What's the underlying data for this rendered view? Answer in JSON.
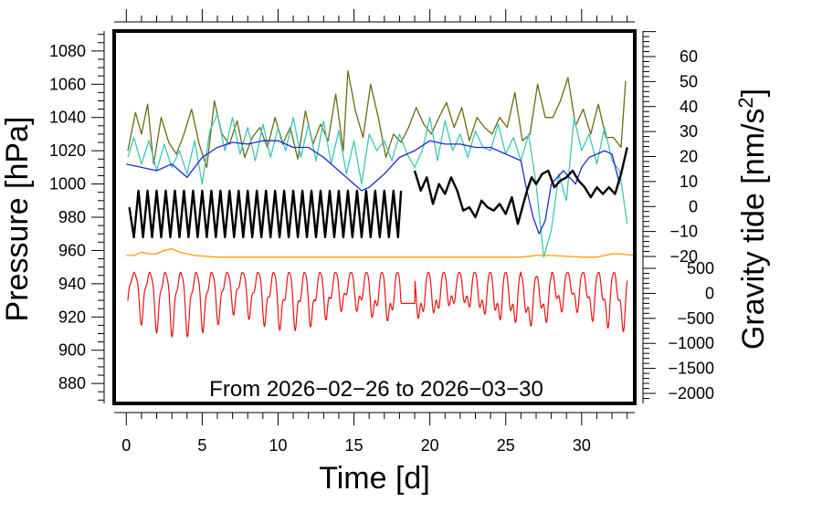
{
  "chart_data": {
    "type": "line",
    "annotation": "From 2026−02−26 to 2026−03−30",
    "x_axis": {
      "label": "Time [d]",
      "range": [
        -0.8,
        33.5
      ],
      "ticks": [
        0,
        5,
        10,
        15,
        20,
        25,
        30
      ],
      "tick_labels": [
        "0",
        "5",
        "10",
        "15",
        "20",
        "25",
        "30"
      ]
    },
    "y_axis_left": {
      "label": "Pressure [hPa]",
      "range": [
        868,
        1092
      ],
      "ticks": [
        880,
        900,
        920,
        940,
        960,
        980,
        1000,
        1020,
        1040,
        1060,
        1080
      ],
      "tick_labels": [
        "880",
        "900",
        "920",
        "940",
        "960",
        "980",
        "1000",
        "1020",
        "1040",
        "1060",
        "1080"
      ]
    },
    "y_axis_right_upper": {
      "label": "Gravity tide [nm/s",
      "label_sup": "2",
      "label_end": "]",
      "ticks": [
        -20,
        -10,
        0,
        10,
        20,
        30,
        40,
        50,
        60
      ],
      "tick_labels": [
        "−20",
        "−10",
        "0",
        "10",
        "20",
        "30",
        "40",
        "50",
        "60"
      ]
    },
    "y_axis_right_lower": {
      "ticks": [
        -2000,
        -1500,
        -1000,
        -500,
        0,
        500
      ],
      "tick_labels": [
        "−2000",
        "−1500",
        "−1000",
        "−500",
        "0",
        "500"
      ]
    },
    "grid": false,
    "series": [
      {
        "color": "#6b6b10",
        "x": [
          0.1,
          0.6,
          1.0,
          1.4,
          1.8,
          2.3,
          2.8,
          3.3,
          3.8,
          4.3,
          4.8,
          5.3,
          5.8,
          6.3,
          6.8,
          7.3,
          7.8,
          8.3,
          8.8,
          9.3,
          9.8,
          10.3,
          10.8,
          11.3,
          11.8,
          12.3,
          12.8,
          13.3,
          13.8,
          14.3,
          14.6,
          15.1,
          15.6,
          16.1,
          16.6,
          17.1,
          17.6,
          18.1,
          18.6,
          19.1,
          19.6,
          20.1,
          20.6,
          21.1,
          21.6,
          22.1,
          22.6,
          23.1,
          23.6,
          24.1,
          24.6,
          25.1,
          25.6,
          26.1,
          26.6,
          27.1,
          27.6,
          28.1,
          28.6,
          29.1,
          29.6,
          30.1,
          30.6,
          31.1,
          31.6,
          32.1,
          32.6,
          32.9
        ],
        "y": [
          1020,
          1043,
          1030,
          1048,
          1012,
          1040,
          1025,
          1018,
          1030,
          1045,
          1024,
          1010,
          1050,
          1030,
          1024,
          1038,
          1016,
          1028,
          1034,
          1022,
          1040,
          1024,
          1034,
          1015,
          1044,
          1024,
          1036,
          1026,
          1054,
          1020,
          1068,
          1044,
          1028,
          1060,
          1040,
          1016,
          1030,
          1025,
          1034,
          1046,
          1036,
          1030,
          1040,
          1049,
          1034,
          1046,
          1026,
          1040,
          1034,
          1030,
          1040,
          1034,
          1055,
          1026,
          1030,
          1060,
          1040,
          1040,
          1050,
          1064,
          1035,
          1045,
          1030,
          1048,
          1028,
          1028,
          1022,
          1062
        ]
      },
      {
        "color": "#3cc8b4",
        "x": [
          0.1,
          0.5,
          1.0,
          1.5,
          2.0,
          2.5,
          3.0,
          3.5,
          4.0,
          4.5,
          5.0,
          5.5,
          6.0,
          6.5,
          7.0,
          7.5,
          8.0,
          8.5,
          9.0,
          9.5,
          10.0,
          10.5,
          11.0,
          11.5,
          12.0,
          12.5,
          13.0,
          13.5,
          14.0,
          14.5,
          15.0,
          15.5,
          16.0,
          16.5,
          17.0,
          17.5,
          18.0,
          18.5,
          19.0,
          19.5,
          20.0,
          20.5,
          21.0,
          21.5,
          22.0,
          22.5,
          23.0,
          23.5,
          24.0,
          24.5,
          25.0,
          25.5,
          26.0,
          26.5,
          27.0,
          27.5,
          28.0,
          28.5,
          29.0,
          29.5,
          30.0,
          30.5,
          31.0,
          31.5,
          32.0,
          32.5,
          33.0
        ],
        "y": [
          1016,
          1028,
          1012,
          1026,
          1008,
          1024,
          1010,
          1020,
          1006,
          1026,
          1000,
          1032,
          1042,
          1020,
          1040,
          1018,
          1034,
          1014,
          1036,
          1016,
          1034,
          1020,
          1040,
          1016,
          1036,
          1014,
          1038,
          1012,
          1032,
          1006,
          1026,
          1000,
          1030,
          1020,
          1026,
          1014,
          1030,
          1018,
          1010,
          1020,
          1040,
          1014,
          1038,
          1020,
          1030,
          1016,
          1032,
          1022,
          1020,
          1036,
          1018,
          1028,
          1014,
          1030,
          1000,
          956,
          972,
          1006,
          990,
          1040,
          1020,
          1030,
          1012,
          1034,
          1014,
          1008,
          976
        ]
      },
      {
        "color": "#1e28d2",
        "x": [
          0,
          1,
          2,
          3,
          4,
          5,
          6,
          7,
          8,
          9,
          10,
          11,
          12,
          13,
          14,
          15,
          15.5,
          16,
          17,
          18,
          19,
          20,
          21,
          22,
          23,
          24,
          25,
          25.5,
          26,
          26.3,
          26.8,
          27.2,
          27.6,
          28.0,
          28.4,
          28.8,
          29.2,
          29.6,
          30.0,
          30.5,
          31,
          31.5,
          32,
          32.5
        ],
        "y": [
          1012,
          1010,
          1008,
          1012,
          1004,
          1016,
          1022,
          1025,
          1024,
          1026,
          1026,
          1022,
          1022,
          1016,
          1008,
          1000,
          996,
          998,
          1006,
          1016,
          1020,
          1026,
          1024,
          1024,
          1022,
          1022,
          1018,
          1016,
          1014,
          1000,
          980,
          970,
          978,
          1000,
          1004,
          1008,
          1004,
          1000,
          1010,
          1016,
          1018,
          1020,
          1018,
          1000
        ]
      },
      {
        "color": "#000000",
        "x": [
          0.2,
          0.5,
          0.8,
          1.1,
          1.4,
          1.7,
          2.0,
          2.3,
          2.6,
          2.9,
          3.2,
          3.5,
          3.8,
          4.1,
          4.4,
          4.7,
          5.0,
          5.3,
          5.6,
          5.9,
          6.2,
          6.5,
          6.8,
          7.1,
          7.4,
          7.7,
          8.0,
          8.3,
          8.6,
          8.9,
          9.2,
          9.5,
          9.8,
          10.1,
          10.4,
          10.7,
          11.0,
          11.3,
          11.6,
          11.9,
          12.2,
          12.5,
          12.8,
          13.1,
          13.4,
          13.7,
          14.0,
          14.3,
          14.6,
          14.9,
          15.2,
          15.5,
          15.8,
          16.1,
          16.4,
          16.7,
          17.0,
          17.3,
          17.6,
          17.9,
          18.1
        ],
        "y": [
          986,
          968,
          996,
          968,
          996,
          968,
          996,
          968,
          996,
          968,
          996,
          968,
          996,
          968,
          996,
          968,
          996,
          968,
          996,
          968,
          996,
          968,
          996,
          968,
          996,
          968,
          996,
          968,
          996,
          968,
          996,
          968,
          996,
          968,
          996,
          968,
          996,
          968,
          996,
          968,
          996,
          968,
          996,
          968,
          996,
          968,
          996,
          968,
          996,
          968,
          996,
          968,
          996,
          968,
          996,
          968,
          996,
          968,
          996,
          968,
          996
        ]
      },
      {
        "color": "#000000",
        "x": [
          19.0,
          19.4,
          19.8,
          20.2,
          20.6,
          21.0,
          21.4,
          21.8,
          22.2,
          22.6,
          23.0,
          23.4,
          23.8,
          24.2,
          24.6,
          25.0,
          25.4,
          25.8,
          26.1,
          26.4,
          26.7,
          27.0,
          27.4,
          27.8,
          28.2,
          28.6,
          29.0,
          29.4,
          29.8,
          30.2,
          30.6,
          31.0,
          31.4,
          31.8,
          32.2,
          32.6,
          33.0
        ],
        "y": [
          1008,
          996,
          1004,
          988,
          1000,
          994,
          1004,
          996,
          984,
          986,
          980,
          990,
          986,
          984,
          988,
          982,
          992,
          976,
          986,
          996,
          1004,
          1000,
          1006,
          1008,
          998,
          1002,
          1004,
          1008,
          1002,
          998,
          992,
          998,
          994,
          998,
          994,
          1006,
          1022
        ]
      },
      {
        "color": "#ff9900",
        "x": [
          0,
          0.5,
          1.0,
          1.5,
          2.0,
          2.5,
          3.0,
          3.5,
          4.5,
          6,
          10,
          15,
          20,
          25,
          26,
          27,
          28,
          30,
          31,
          32,
          32.5,
          33.5
        ],
        "y": [
          957,
          957,
          959,
          958,
          958,
          960,
          961,
          959,
          957,
          956,
          956,
          956,
          956,
          956,
          956,
          957,
          957,
          956,
          956,
          958,
          958,
          957
        ]
      }
    ],
    "dense_series": [
      {
        "color": "#ee1111",
        "x_range": [
          0.1,
          33
        ],
        "gap": [
          18.1,
          19.0
        ],
        "values_range": [
          -1100,
          500
        ]
      }
    ]
  }
}
